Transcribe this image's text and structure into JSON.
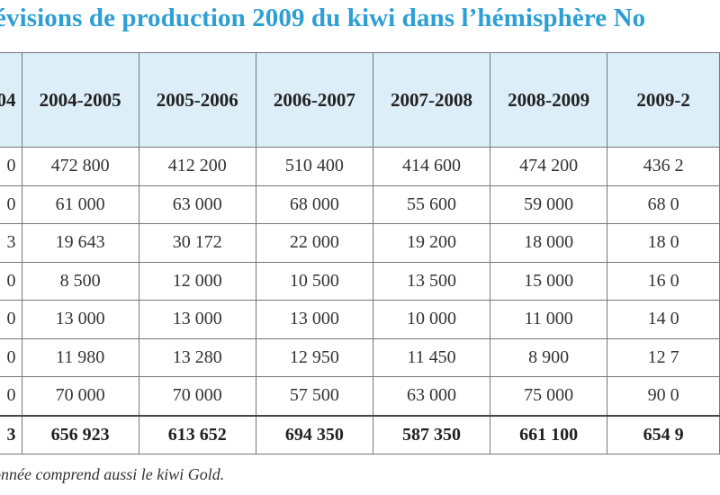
{
  "title": "évisions de production 2009 du kiwi dans l’hémisphère No",
  "headers": [
    "04",
    "2004-2005",
    "2005-2006",
    "2006-2007",
    "2007-2008",
    "2008-2009",
    "2009-2"
  ],
  "rows": [
    [
      "0",
      "472 800",
      "412 200",
      "510 400",
      "414 600",
      "474 200",
      "436 2"
    ],
    [
      "0",
      "61 000",
      "63 000",
      "68 000",
      "55 600",
      "59 000",
      "68 0"
    ],
    [
      "3",
      "19 643",
      "30 172",
      "22 000",
      "19 200",
      "18 000",
      "18 0"
    ],
    [
      "0",
      "8 500",
      "12 000",
      "10 500",
      "13 500",
      "15 000",
      "16 0"
    ],
    [
      "0",
      "13 000",
      "13 000",
      "13 000",
      "10 000",
      "11 000",
      "14 0"
    ],
    [
      "0",
      "11 980",
      "13 280",
      "12 950",
      "11 450",
      "8 900",
      "12 7"
    ],
    [
      "0",
      "70 000",
      "70 000",
      "57 500",
      "63 000",
      "75 000",
      "90 0"
    ]
  ],
  "total_row": [
    "3",
    "656 923",
    "613 652",
    "694 350",
    "587 350",
    "661 100",
    "654 9"
  ],
  "note": "onnée comprend aussi le kiwi Gold.",
  "colors": {
    "title": "#2e9fd4",
    "header_bg": "#dceef8",
    "border": "#777777"
  }
}
